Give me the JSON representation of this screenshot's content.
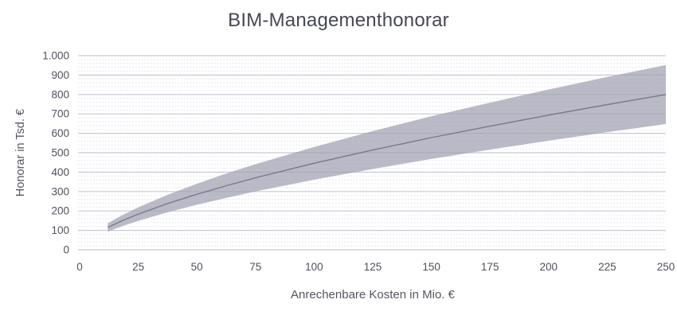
{
  "chart_data": {
    "type": "area",
    "title": "BIM-Managementhonorar",
    "xlabel": "Anrechenbare Kosten in Mio. €",
    "ylabel": "Honorar in Tsd. €",
    "xlim": [
      0,
      250
    ],
    "ylim": [
      0,
      1000
    ],
    "x_ticks": [
      0,
      25,
      50,
      75,
      100,
      125,
      150,
      175,
      200,
      225,
      250
    ],
    "x_tick_labels": [
      "0",
      "25",
      "50",
      "75",
      "100",
      "125",
      "150",
      "175",
      "200",
      "225",
      "250"
    ],
    "y_ticks": [
      0,
      100,
      200,
      300,
      400,
      500,
      600,
      700,
      800,
      900,
      1000
    ],
    "y_tick_labels": [
      "0",
      "100",
      "200",
      "300",
      "400",
      "500",
      "600",
      "700",
      "800",
      "900",
      "1.000"
    ],
    "grid": {
      "major_interval": 100,
      "minor_interval": 20,
      "major_style": "solid",
      "minor_style": "dotted",
      "vertical_gridlines": false
    },
    "legend_position": "none",
    "x": [
      12,
      18,
      25,
      37.5,
      50,
      62.5,
      75,
      100,
      125,
      150,
      175,
      200,
      225,
      250
    ],
    "series": [
      {
        "name": "upper_bound",
        "values": [
          137,
          177,
          219,
          283,
          340,
          393,
          441,
          530,
          612,
          688,
          758,
          826,
          890,
          952
        ]
      },
      {
        "name": "center_line",
        "values": [
          115,
          149,
          184,
          238,
          286,
          330,
          371,
          446,
          514,
          578,
          637,
          694,
          748,
          800
        ]
      },
      {
        "name": "lower_bound",
        "values": [
          93,
          121,
          149,
          193,
          232,
          267,
          301,
          361,
          416,
          468,
          516,
          562,
          606,
          648
        ]
      }
    ],
    "colors": {
      "band_fill": "#9fa1b1",
      "band_opacity": "0.72",
      "center_line": "#787a8a",
      "grid_major": "#c7c9d5",
      "grid_minor": "#e2e3ee",
      "title_text": "#454754",
      "tick_text": "#4f525e"
    }
  }
}
